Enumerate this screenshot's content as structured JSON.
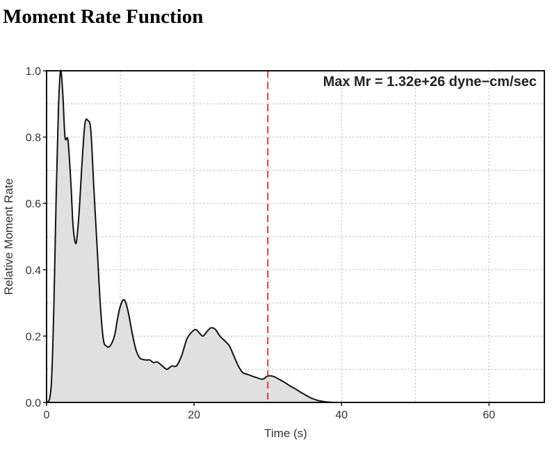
{
  "page": {
    "title": "Moment Rate Function"
  },
  "chart_data": {
    "type": "area",
    "xlabel": "Time (s)",
    "ylabel": "Relative Moment Rate",
    "xlim": [
      0,
      67.5
    ],
    "ylim": [
      0,
      1.0
    ],
    "xticks": [
      0,
      20,
      40,
      60
    ],
    "yticks": [
      0.0,
      0.2,
      0.4,
      0.6,
      0.8,
      1.0
    ],
    "xtick_labels": [
      "0",
      "20",
      "40",
      "60"
    ],
    "ytick_labels": [
      "0.0",
      "0.2",
      "0.4",
      "0.6",
      "0.8",
      "1.0"
    ],
    "grid": true,
    "annotation": "Max Mr = 1.32e+26 dyne−cm/sec",
    "vline_x": 30,
    "colors": {
      "line": "#111111",
      "fill": "#e0e0e0",
      "vline": "#d93a3a",
      "grid": "#b5b5b5"
    },
    "x": [
      0,
      0.4,
      0.7,
      1.0,
      1.3,
      1.6,
      1.9,
      2.2,
      2.5,
      2.9,
      3.3,
      3.6,
      4.0,
      4.4,
      4.8,
      5.2,
      5.6,
      6.0,
      6.4,
      6.9,
      7.3,
      7.7,
      8.1,
      8.6,
      9.2,
      9.6,
      10.0,
      10.5,
      11.0,
      11.6,
      12.1,
      12.6,
      13.0,
      13.5,
      14.0,
      14.5,
      15.0,
      15.7,
      16.3,
      17.0,
      17.6,
      18.3,
      19.0,
      19.6,
      20.2,
      20.7,
      21.2,
      21.8,
      22.3,
      22.9,
      23.5,
      24.2,
      24.8,
      25.4,
      26.0,
      26.6,
      27.2,
      27.8,
      28.5,
      29.3,
      30.0,
      30.8,
      31.5,
      32.3,
      33.0,
      33.8,
      34.5,
      35.3,
      36.0,
      36.8,
      37.5,
      38.3,
      39.0,
      40.0,
      67.5
    ],
    "y": [
      0.0,
      0.01,
      0.08,
      0.3,
      0.62,
      0.88,
      1.0,
      0.93,
      0.8,
      0.79,
      0.66,
      0.53,
      0.48,
      0.57,
      0.72,
      0.84,
      0.85,
      0.82,
      0.65,
      0.45,
      0.29,
      0.19,
      0.17,
      0.17,
      0.2,
      0.25,
      0.29,
      0.31,
      0.28,
      0.21,
      0.16,
      0.135,
      0.13,
      0.128,
      0.128,
      0.12,
      0.122,
      0.11,
      0.1,
      0.11,
      0.11,
      0.14,
      0.19,
      0.21,
      0.22,
      0.21,
      0.2,
      0.215,
      0.225,
      0.22,
      0.2,
      0.185,
      0.17,
      0.14,
      0.11,
      0.09,
      0.085,
      0.08,
      0.075,
      0.07,
      0.08,
      0.078,
      0.07,
      0.06,
      0.05,
      0.04,
      0.03,
      0.02,
      0.012,
      0.006,
      0.003,
      0.001,
      0.0,
      0.0,
      0.0
    ]
  }
}
